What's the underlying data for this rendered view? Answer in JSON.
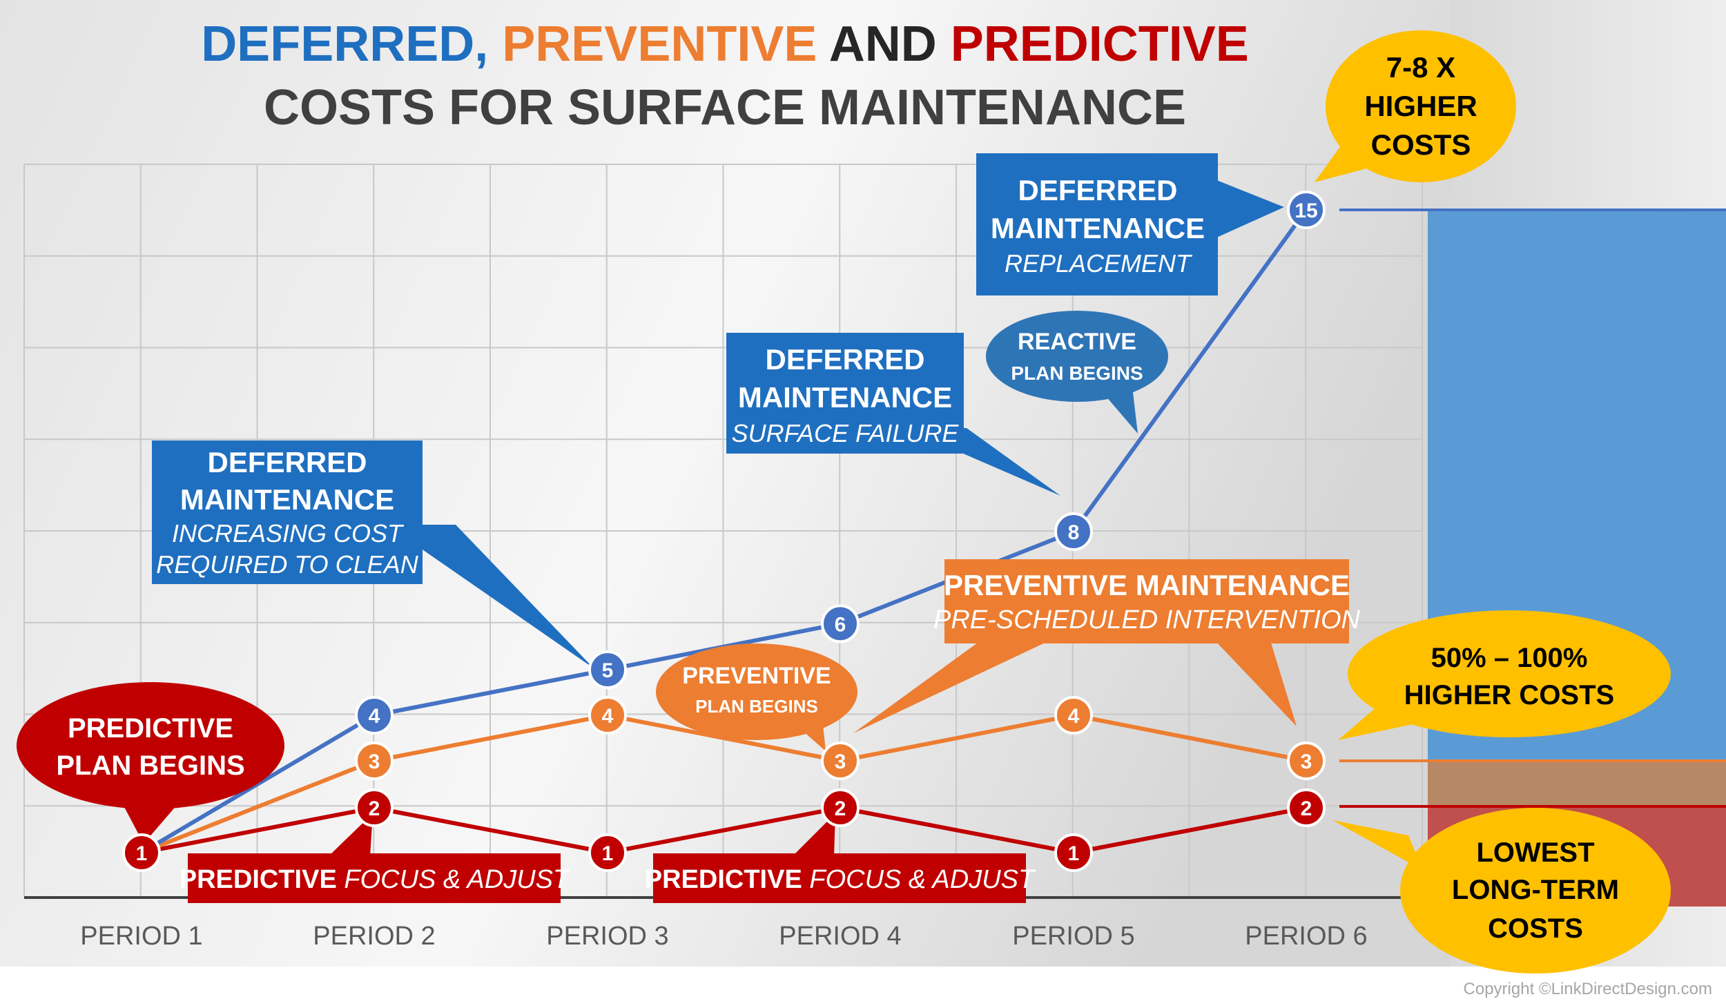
{
  "title": {
    "part_deferred": "DEFERRED,",
    "part_preventive": "PREVENTIVE",
    "part_and": "AND",
    "part_predictive": "PREDICTIVE",
    "line2": "COSTS FOR SURFACE MAINTENANCE"
  },
  "colors": {
    "deferred": "#4472c4",
    "preventive": "#ed7d31",
    "predictive": "#c00000",
    "deferred_box": "#1f6fc0",
    "yellow": "#ffc000"
  },
  "chart_data": {
    "type": "line",
    "categories": [
      "PERIOD 1",
      "PERIOD 2",
      "PERIOD 3",
      "PERIOD 4",
      "PERIOD 5",
      "PERIOD 6"
    ],
    "series": [
      {
        "name": "DEFERRED",
        "values": [
          1,
          4,
          5,
          6,
          8,
          15
        ]
      },
      {
        "name": "PREVENTIVE",
        "values": [
          1,
          3,
          4,
          3,
          4,
          3
        ]
      },
      {
        "name": "PREDICTIVE",
        "values": [
          1,
          2,
          1,
          2,
          1,
          2
        ]
      }
    ],
    "ylim": [
      0,
      16
    ],
    "grid": true,
    "legend": "none"
  },
  "annotations": {
    "deferred_1": {
      "line1": "DEFERRED",
      "line2": "MAINTENANCE",
      "line3": "INCREASING COST",
      "line4": "REQUIRED TO CLEAN"
    },
    "deferred_2": {
      "line1": "DEFERRED",
      "line2": "MAINTENANCE",
      "line3": "SURFACE FAILURE"
    },
    "deferred_3": {
      "line1": "DEFERRED",
      "line2": "MAINTENANCE",
      "line3": "REPLACEMENT"
    },
    "reactive": {
      "line1": "REACTIVE",
      "line2": "PLAN BEGINS"
    },
    "preventive_begins": {
      "line1": "PREVENTIVE",
      "line2": "PLAN BEGINS"
    },
    "preventive_box": {
      "line1": "PREVENTIVE MAINTENANCE",
      "line2": "PRE-SCHEDULED INTERVENTION"
    },
    "predictive_begins": {
      "line1": "PREDICTIVE",
      "line2": "PLAN BEGINS"
    },
    "predictive_focus_1": {
      "bold": "PREDICTIVE",
      "italic": "FOCUS & ADJUST"
    },
    "predictive_focus_2": {
      "bold": "PREDICTIVE",
      "italic": "FOCUS & ADJUST"
    },
    "higher_78": {
      "line1": "7-8 X",
      "line2": "HIGHER",
      "line3": "COSTS"
    },
    "higher_50": {
      "line1": "50% – 100%",
      "line2": "HIGHER COSTS"
    },
    "lowest": {
      "line1": "LOWEST",
      "line2": "LONG-TERM",
      "line3": "COSTS"
    }
  },
  "copyright": "Copyright ©LinkDirectDesign.com"
}
